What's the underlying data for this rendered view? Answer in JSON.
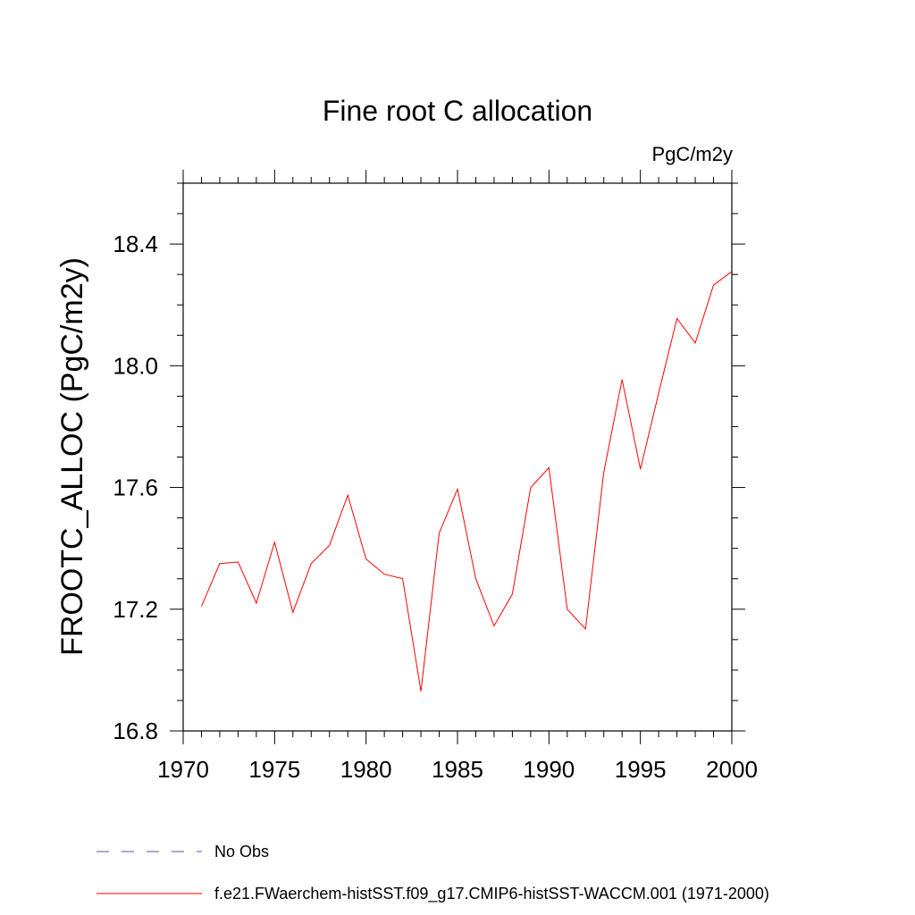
{
  "chart_data": {
    "type": "line",
    "title": "Fine root C allocation",
    "units_label": "PgC/m2y",
    "ylabel": "FROOTC_ALLOC  (PgC/m2y)",
    "xlabel": "",
    "xlim": [
      1970,
      2000
    ],
    "ylim": [
      16.8,
      18.6
    ],
    "x_ticks": [
      "1970",
      "1975",
      "1980",
      "1985",
      "1990",
      "1995",
      "2000"
    ],
    "y_ticks": [
      "16.8",
      "17.2",
      "17.6",
      "18.0",
      "18.4"
    ],
    "x_tick_values": [
      1970,
      1975,
      1980,
      1985,
      1990,
      1995,
      2000
    ],
    "y_tick_values": [
      16.8,
      17.2,
      17.6,
      18.0,
      18.4
    ],
    "grid": false,
    "series": [
      {
        "name": "f.e21.FWaerchem-histSST.f09_g17.CMIP6-histSST-WACCM.001 (1971-2000)",
        "color": "#ff0000",
        "x": [
          1971,
          1972,
          1973,
          1974,
          1975,
          1976,
          1977,
          1978,
          1979,
          1980,
          1981,
          1982,
          1983,
          1984,
          1985,
          1986,
          1987,
          1988,
          1989,
          1990,
          1991,
          1992,
          1993,
          1994,
          1995,
          1996,
          1997,
          1998,
          1999,
          2000
        ],
        "y": [
          17.21,
          17.35,
          17.355,
          17.22,
          17.42,
          17.19,
          17.35,
          17.41,
          17.575,
          17.365,
          17.315,
          17.3,
          16.93,
          17.45,
          17.595,
          17.3,
          17.145,
          17.25,
          17.6,
          17.665,
          17.2,
          17.135,
          17.65,
          17.955,
          17.66,
          17.91,
          18.155,
          18.075,
          18.265,
          18.31
        ]
      }
    ],
    "legend": {
      "placement": "bottom",
      "entries": [
        {
          "label": "No Obs",
          "color": "#5a4fb0",
          "style": "dashed"
        },
        {
          "label": "f.e21.FWaerchem-histSST.f09_g17.CMIP6-histSST-WACCM.001 (1971-2000)",
          "color": "#ff0000",
          "style": "solid"
        }
      ]
    }
  }
}
